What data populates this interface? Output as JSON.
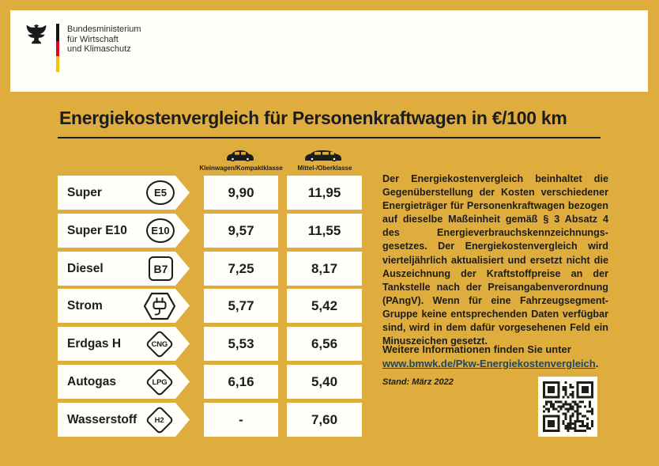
{
  "logo": {
    "line1": "Bundesministerium",
    "line2": "für Wirtschaft",
    "line3": "und Klimaschutz"
  },
  "title": "Energiekostenvergleich für Personenkraftwagen in €/100 km",
  "table": {
    "columns": [
      {
        "label": "Kleinwagen/Kompaktklasse",
        "icon": "compact-car-icon"
      },
      {
        "label": "Mittel-/Oberklasse",
        "icon": "estate-car-icon"
      }
    ],
    "rows": [
      {
        "fuel": "Super",
        "badge": "E5",
        "badge_shape": "circle",
        "values": [
          "9,90",
          "11,95"
        ]
      },
      {
        "fuel": "Super E10",
        "badge": "E10",
        "badge_shape": "circle",
        "values": [
          "9,57",
          "11,55"
        ]
      },
      {
        "fuel": "Diesel",
        "badge": "B7",
        "badge_shape": "square",
        "values": [
          "7,25",
          "8,17"
        ]
      },
      {
        "fuel": "Strom",
        "badge": "plug-icon",
        "badge_shape": "hexagon",
        "values": [
          "5,77",
          "5,42"
        ]
      },
      {
        "fuel": "Erdgas H",
        "badge": "CNG",
        "badge_shape": "diamond",
        "values": [
          "5,53",
          "6,56"
        ]
      },
      {
        "fuel": "Autogas",
        "badge": "LPG",
        "badge_shape": "diamond",
        "values": [
          "6,16",
          "5,40"
        ]
      },
      {
        "fuel": "Wasserstoff",
        "badge": "H2",
        "badge_shape": "diamond",
        "values": [
          "-",
          "7,60"
        ]
      }
    ]
  },
  "info": {
    "paragraph": "Der Energiekostenvergleich beinhaltet die Gegen­überstellung der Kosten verschiedener Energie­träger für Personenkraftwagen bezogen auf dieselbe Maßeinheit gemäß § 3 Absatz 4 des Energieverbrauchs­kennzeichnungs­gesetzes. Der Energiekostenvergleich wird vierteljährlich aktu­alisiert und ersetzt nicht die Auszeichnung der Kraftstoffpreise an der Tankstelle nach der Preis­angabenverordnung (PAngV). Wenn für eine Fahrzeugsegment-Gruppe keine entsprechenden Daten verfügbar sind, wird in dem dafür vorgese­henen Feld ein Minuszeichen gesetzt.",
    "more_info": "Weitere Informationen finden Sie unter",
    "link": "www.bmwk.de/Pkw-Energiekostenvergleich",
    "link_suffix": ".",
    "stand": "Stand: März 2022"
  },
  "colors": {
    "background": "#DFAD3E",
    "ink": "#1D1D1B",
    "link": "#1D4866",
    "flag_black": "#141414",
    "flag_red": "#E2001A",
    "flag_gold": "#F0C400"
  }
}
